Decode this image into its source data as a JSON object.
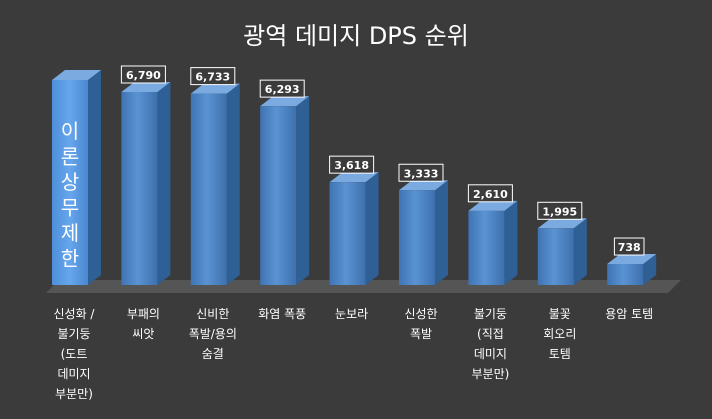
{
  "chart_data": {
    "type": "bar",
    "title": "광역 데미지 DPS 순위",
    "categories": [
      [
        "신성화 /",
        "불기둥",
        "(도트",
        "데미지",
        "부분만)"
      ],
      [
        "부패의",
        "씨앗"
      ],
      [
        "신비한",
        "폭발/용의",
        "숨결"
      ],
      [
        "화염 폭풍"
      ],
      [
        "눈보라"
      ],
      [
        "신성한",
        "폭발"
      ],
      [
        "불기둥",
        "(직접",
        "데미지",
        "부분만)"
      ],
      [
        "불꽃",
        "회오리",
        "토템"
      ],
      [
        "용암 토템"
      ]
    ],
    "values": [
      null,
      6790,
      6733,
      6293,
      3618,
      3333,
      2610,
      1995,
      738
    ],
    "data_labels": [
      "",
      "6,790",
      "6,733",
      "6,293",
      "3,618",
      "3,333",
      "2,610",
      "1,995",
      "738"
    ],
    "special_bar": {
      "index": 0,
      "label": [
        "이",
        "론",
        "상",
        "무",
        "제",
        "한"
      ]
    },
    "ylim": [
      0,
      7000
    ],
    "grid": false,
    "legend": "none",
    "colors": {
      "background": "#3b3b3b",
      "bar_front": "#4f86c6",
      "bar_side": "#2e5f95",
      "bar_top": "#7aaae0",
      "special_front": "#5b9be0",
      "floor": "#555555",
      "text": "#ffffff"
    }
  }
}
